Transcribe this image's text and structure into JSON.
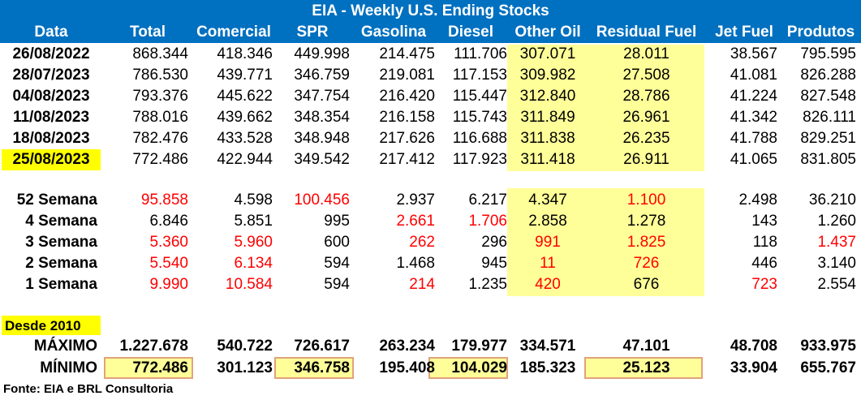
{
  "title": "EIA - Weekly U.S. Ending Stocks",
  "columns": [
    "Data",
    "Total",
    "Comercial",
    "SPR",
    "Gasolina",
    "Diesel",
    "Other Oil",
    "Residual Fuel",
    "Jet Fuel",
    "Produtos"
  ],
  "weekly_rows": [
    {
      "date": "26/08/2022",
      "values": [
        "868.344",
        "418.346",
        "449.998",
        "214.475",
        "111.706",
        "307.071",
        "28.011",
        "38.567",
        "795.595"
      ]
    },
    {
      "date": "28/07/2023",
      "values": [
        "786.530",
        "439.771",
        "346.759",
        "219.081",
        "117.153",
        "309.982",
        "27.508",
        "41.081",
        "826.288"
      ]
    },
    {
      "date": "04/08/2023",
      "values": [
        "793.376",
        "445.622",
        "347.754",
        "216.420",
        "115.447",
        "312.840",
        "28.786",
        "41.224",
        "827.548"
      ]
    },
    {
      "date": "11/08/2023",
      "values": [
        "788.016",
        "439.662",
        "348.354",
        "216.158",
        "115.743",
        "311.849",
        "26.961",
        "41.342",
        "826.111"
      ]
    },
    {
      "date": "18/08/2023",
      "values": [
        "782.476",
        "433.528",
        "348.948",
        "217.626",
        "116.688",
        "311.838",
        "26.235",
        "41.788",
        "829.251"
      ]
    },
    {
      "date": "25/08/2023",
      "values": [
        "772.486",
        "422.944",
        "349.542",
        "217.412",
        "117.923",
        "311.418",
        "26.911",
        "41.065",
        "831.805"
      ]
    }
  ],
  "change_rows": [
    {
      "label": "52 Semana",
      "values": [
        "95.858",
        "4.598",
        "100.456",
        "2.937",
        "6.217",
        "4.347",
        "1.100",
        "2.498",
        "36.210"
      ],
      "red": [
        true,
        false,
        true,
        false,
        false,
        false,
        true,
        false,
        false
      ]
    },
    {
      "label": "4 Semana",
      "values": [
        "6.846",
        "5.851",
        "995",
        "2.661",
        "1.706",
        "2.858",
        "1.278",
        "143",
        "1.260"
      ],
      "red": [
        false,
        false,
        false,
        true,
        true,
        false,
        false,
        false,
        false
      ]
    },
    {
      "label": "3 Semana",
      "values": [
        "5.360",
        "5.960",
        "600",
        "262",
        "296",
        "991",
        "1.825",
        "118",
        "1.437"
      ],
      "red": [
        true,
        true,
        false,
        true,
        false,
        true,
        true,
        false,
        true
      ]
    },
    {
      "label": "2 Semana",
      "values": [
        "5.540",
        "6.134",
        "594",
        "1.468",
        "945",
        "11",
        "726",
        "446",
        "3.140"
      ],
      "red": [
        true,
        true,
        false,
        false,
        false,
        true,
        true,
        false,
        false
      ]
    },
    {
      "label": "1 Semana",
      "values": [
        "9.990",
        "10.584",
        "594",
        "214",
        "1.235",
        "420",
        "676",
        "723",
        "2.554"
      ],
      "red": [
        true,
        true,
        false,
        true,
        false,
        true,
        false,
        true,
        false
      ]
    }
  ],
  "desde_label": "Desde 2010",
  "maximo": {
    "label": "MÁXIMO",
    "values": [
      "1.227.678",
      "540.722",
      "726.617",
      "263.234",
      "179.977",
      "334.571",
      "47.101",
      "48.708",
      "933.975"
    ]
  },
  "minimo": {
    "label": "MÍNIMO",
    "values": [
      "772.486",
      "301.123",
      "346.758",
      "195.408",
      "104.029",
      "185.323",
      "25.123",
      "33.904",
      "655.767"
    ]
  },
  "source": "Fonte: EIA e BRL Consultoria",
  "colors": {
    "header_bg": "#0070c0",
    "highlight": "#ffff99",
    "date_highlight": "#ffff00",
    "negative": "#ff0000",
    "box_border": "#e0a37a"
  }
}
